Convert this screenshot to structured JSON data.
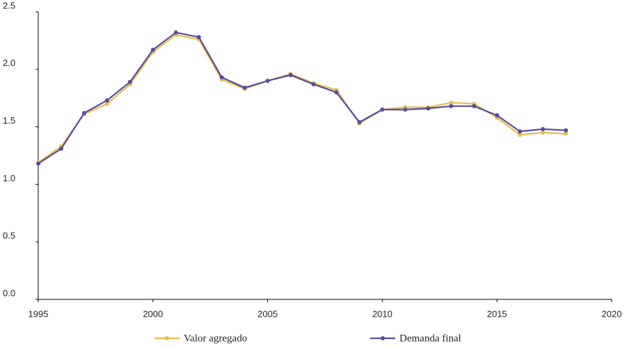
{
  "chart_data": {
    "type": "line",
    "x": [
      1995,
      1996,
      1997,
      1998,
      1999,
      2000,
      2001,
      2002,
      2003,
      2004,
      2005,
      2006,
      2007,
      2008,
      2009,
      2010,
      2011,
      2012,
      2013,
      2014,
      2015,
      2016,
      2017,
      2018
    ],
    "series": [
      {
        "name": "Valor agregado",
        "color": "#e3be4a",
        "values": [
          1.19,
          1.33,
          1.61,
          1.7,
          1.87,
          2.15,
          2.3,
          2.26,
          1.91,
          1.83,
          1.9,
          1.96,
          1.88,
          1.82,
          1.53,
          1.65,
          1.67,
          1.67,
          1.71,
          1.7,
          1.58,
          1.43,
          1.45,
          1.44
        ]
      },
      {
        "name": "Demanda final",
        "color": "#5a4a9e",
        "values": [
          1.18,
          1.31,
          1.62,
          1.73,
          1.89,
          2.17,
          2.32,
          2.28,
          1.93,
          1.84,
          1.9,
          1.95,
          1.87,
          1.8,
          1.54,
          1.65,
          1.65,
          1.66,
          1.68,
          1.68,
          1.6,
          1.46,
          1.48,
          1.47
        ]
      }
    ],
    "xlim": [
      1995,
      2020
    ],
    "xticks": [
      1995,
      2000,
      2005,
      2010,
      2015,
      2020
    ],
    "ylim": [
      0,
      2.5
    ],
    "yticks": [
      {
        "value": 0,
        "label": "0.0"
      },
      0.5,
      {
        "value": 1,
        "label": "1.0"
      },
      1.5,
      {
        "value": 2,
        "label": "2.0"
      },
      2.5
    ],
    "legend": "bottom"
  }
}
